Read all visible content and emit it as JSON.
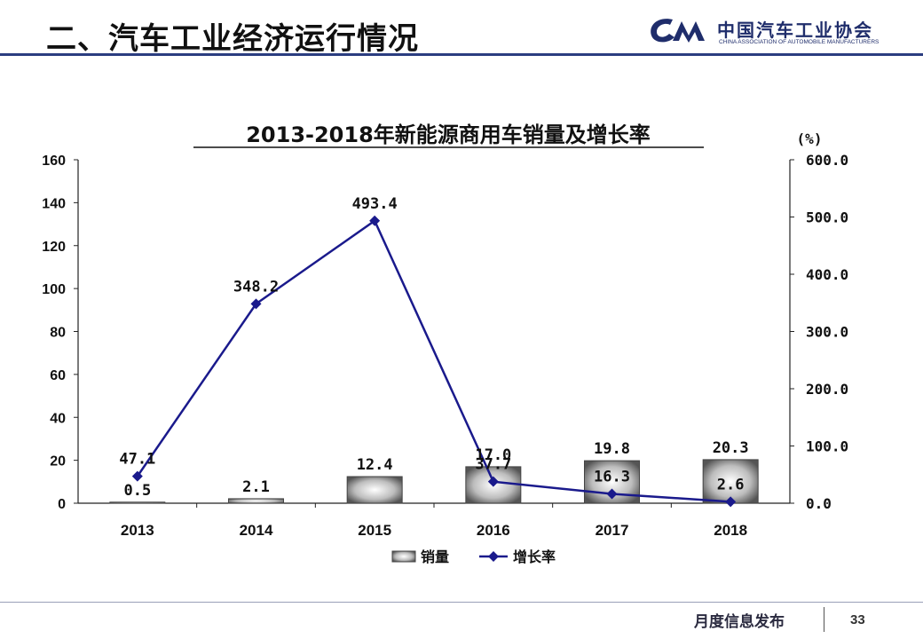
{
  "header": {
    "title": "二、汽车工业经济运行情况",
    "logo_name": "中国汽车工业协会",
    "logo_en": "CHINA ASSOCIATION OF AUTOMOBILE MANUFACTURERS"
  },
  "footer": {
    "label": "月度信息发布",
    "page": "33"
  },
  "colors": {
    "accent": "#2b3d80",
    "line": "#1a1a8c",
    "bar_fill": "#c8c8c8",
    "bar_edge": "#444444"
  },
  "chart_data": {
    "type": "bar",
    "title": "2013-2018年新能源商用车销量及增长率",
    "y2_unit": "(%)",
    "categories": [
      "2013",
      "2014",
      "2015",
      "2016",
      "2017",
      "2018"
    ],
    "ylim": [
      0,
      160
    ],
    "y_ticks": [
      "0",
      "20",
      "40",
      "60",
      "80",
      "100",
      "120",
      "140",
      "160"
    ],
    "y2lim": [
      0,
      600
    ],
    "y2_ticks": [
      "0.0",
      "100.0",
      "200.0",
      "300.0",
      "400.0",
      "500.0",
      "600.0"
    ],
    "series": [
      {
        "name": "销量",
        "type": "bar",
        "axis": "left",
        "values": [
          0.5,
          2.1,
          12.4,
          17.0,
          19.8,
          20.3
        ],
        "labels": [
          "0.5",
          "2.1",
          "12.4",
          "17.0",
          "19.8",
          "20.3"
        ]
      },
      {
        "name": "增长率",
        "type": "line",
        "axis": "right",
        "values": [
          47.1,
          348.2,
          493.4,
          37.7,
          16.3,
          2.6
        ],
        "labels": [
          "47.1",
          "348.2",
          "493.4",
          "37.7",
          "16.3",
          "2.6"
        ]
      }
    ],
    "legend": "bottom",
    "grid": false
  }
}
